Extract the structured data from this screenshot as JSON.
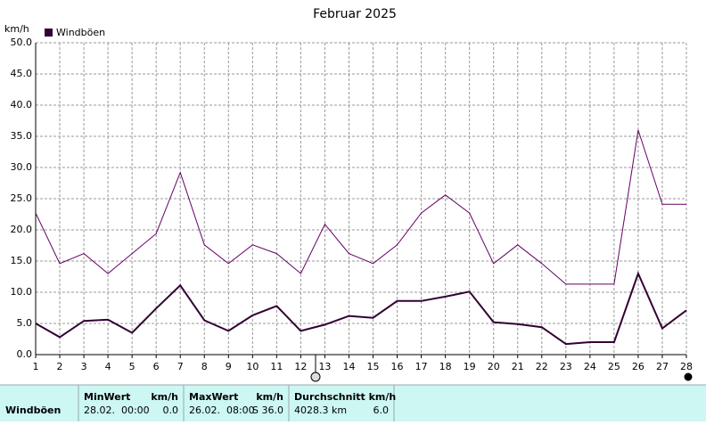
{
  "chart_data": {
    "type": "line",
    "title": "Februar 2025",
    "y_label": "km/h",
    "x": [
      1,
      2,
      3,
      4,
      5,
      6,
      7,
      8,
      9,
      10,
      11,
      12,
      13,
      14,
      15,
      16,
      17,
      18,
      19,
      20,
      21,
      22,
      23,
      24,
      25,
      26,
      27,
      28
    ],
    "xlim": [
      1,
      28
    ],
    "xticks": [
      1,
      2,
      3,
      4,
      5,
      6,
      7,
      8,
      9,
      10,
      11,
      12,
      13,
      14,
      15,
      16,
      17,
      18,
      19,
      20,
      21,
      22,
      23,
      24,
      25,
      26,
      27,
      28
    ],
    "ylim": [
      0,
      50
    ],
    "yticks": [
      {
        "value": 0,
        "label": "0.0"
      },
      {
        "value": 5,
        "label": "5.0"
      },
      {
        "value": 10,
        "label": "10.0"
      },
      {
        "value": 15,
        "label": "15.0"
      },
      {
        "value": 20,
        "label": "20.0"
      },
      {
        "value": 25,
        "label": "25.0"
      },
      {
        "value": 30,
        "label": "30.0"
      },
      {
        "value": 35,
        "label": "35.0"
      },
      {
        "value": 40,
        "label": "40.0"
      },
      {
        "value": 45,
        "label": "45.0"
      },
      {
        "value": 50,
        "label": "50.0"
      }
    ],
    "grid": true,
    "series": [
      {
        "name": "Windböen",
        "color": "#330033",
        "values": [
          5.0,
          2.8,
          5.4,
          5.6,
          3.5,
          7.4,
          11.1,
          5.5,
          3.8,
          6.3,
          7.8,
          3.8,
          4.8,
          6.2,
          5.9,
          8.6,
          8.6,
          9.3,
          10.1,
          5.2,
          4.9,
          4.4,
          1.7,
          2.0,
          2.0,
          13.0,
          4.2,
          7.1
        ]
      },
      {
        "color": "#660066",
        "values": [
          22.7,
          14.6,
          16.2,
          13.0,
          16.2,
          19.4,
          29.2,
          17.6,
          14.6,
          17.6,
          16.2,
          13.0,
          20.9,
          16.2,
          14.6,
          17.6,
          22.7,
          25.6,
          22.7,
          14.6,
          17.6,
          14.6,
          11.3,
          11.3,
          11.3,
          36.0,
          24.1,
          24.1
        ]
      }
    ]
  },
  "table": {
    "row_label": "Windböen",
    "cells": [
      {
        "head": "MinWert",
        "unit": "km/h",
        "when": "28.02.  00:00",
        "value": "0.0"
      },
      {
        "head": "MaxWert",
        "unit": "km/h",
        "when": "26.02.  08:00",
        "value": "S 36.0"
      },
      {
        "head": "Durchschnitt km/h",
        "unit": "",
        "when": "4028.3 km",
        "value": "6.0"
      }
    ]
  }
}
